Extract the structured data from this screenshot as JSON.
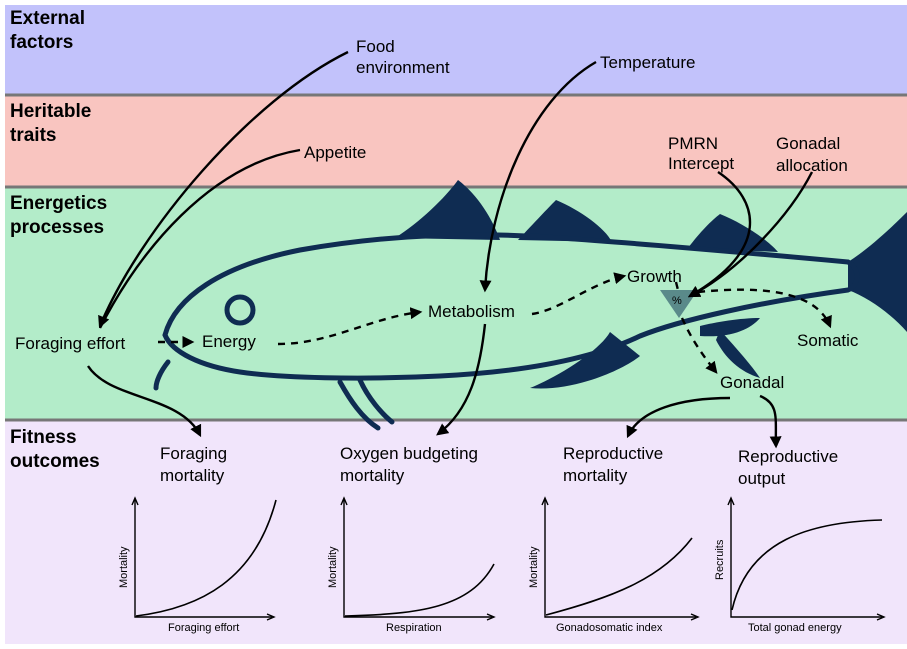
{
  "bands": {
    "external": {
      "title_1": "External",
      "title_2": "factors",
      "color": "#c2c2fb"
    },
    "heritable": {
      "title_1": "Heritable",
      "title_2": "traits",
      "color": "#f9c5c0"
    },
    "energetics": {
      "title_1": "Energetics",
      "title_2": "processes",
      "color": "#b3ecc9"
    },
    "fitness": {
      "title_1": "Fitness",
      "title_2": "outcomes",
      "color": "#f1e5fb"
    }
  },
  "nodes": {
    "food_environment_1": "Food",
    "food_environment_2": "environment",
    "temperature": "Temperature",
    "appetite": "Appetite",
    "pmrn_1": "PMRN",
    "pmrn_2": "Intercept",
    "gonadal_allocation_1": "Gonadal",
    "gonadal_allocation_2": "allocation",
    "foraging_effort": "Foraging effort",
    "energy": "Energy",
    "metabolism": "Metabolism",
    "growth": "Growth",
    "split_symbol": "%",
    "somatic": "Somatic",
    "gonadal": "Gonadal"
  },
  "outcomes": {
    "foraging_mortality_1": "Foraging",
    "foraging_mortality_2": "mortality",
    "oxygen_mortality_1": "Oxygen budgeting",
    "oxygen_mortality_2": "mortality",
    "reproductive_mortality_1": "Reproductive",
    "reproductive_mortality_2": "mortality",
    "reproductive_output_1": "Reproductive",
    "reproductive_output_2": "output"
  },
  "mini_charts": [
    {
      "ylabel": "Mortality",
      "xlabel": "Foraging effort",
      "shape": "convex-steep"
    },
    {
      "ylabel": "Mortality",
      "xlabel": "Respiration",
      "shape": "convex-late"
    },
    {
      "ylabel": "Mortality",
      "xlabel": "Gonadosomatic index",
      "shape": "mild-convex"
    },
    {
      "ylabel": "Recruits",
      "xlabel": "Total gonad energy",
      "shape": "saturating"
    }
  ],
  "colors": {
    "fish_outline": "#0f2c52",
    "fish_fill": "#0f2c52",
    "arrow": "#000000",
    "band_divider": "#777777"
  }
}
